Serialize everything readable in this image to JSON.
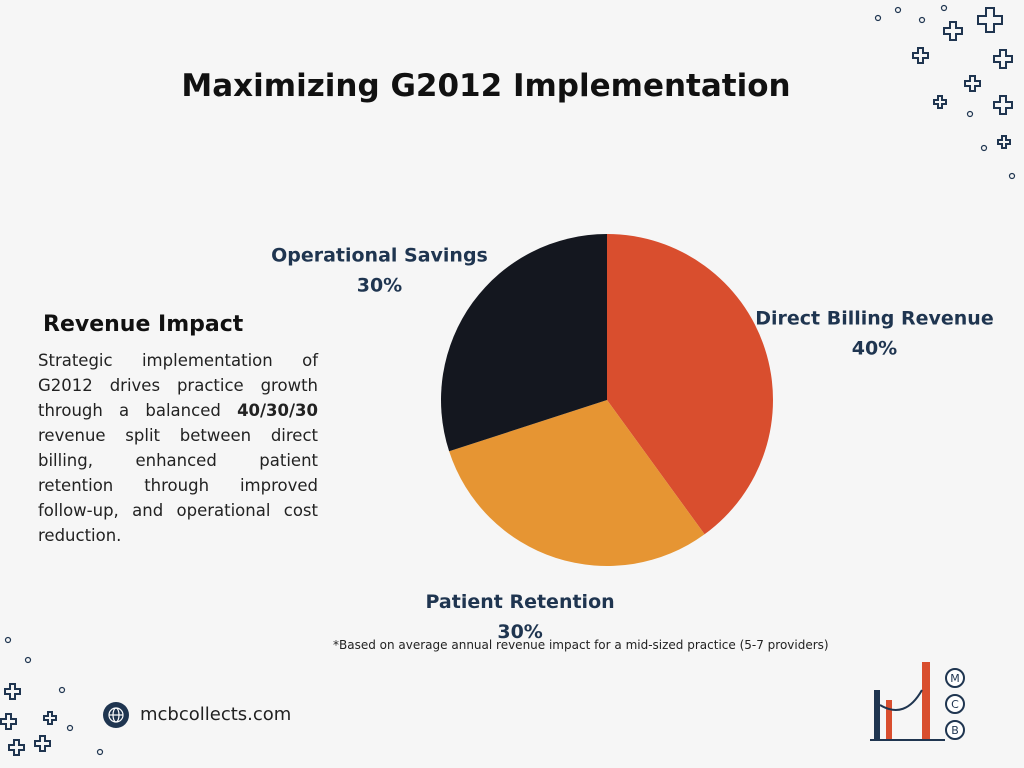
{
  "chart_data": {
    "type": "pie",
    "title": "Maximizing G2012 Implementation",
    "categories": [
      "Direct Billing Revenue",
      "Patient Retention",
      "Operational Savings"
    ],
    "values": [
      40,
      30,
      30
    ],
    "value_labels": [
      "40%",
      "30%",
      "30%"
    ],
    "colors": [
      "#d94e2e",
      "#e69533",
      "#14171f"
    ]
  },
  "sidebar": {
    "heading": "Revenue Impact",
    "text_before": "Strategic implementation of G2012 drives practice growth through a balanced",
    "bold": "40/30/30",
    "text_after": "revenue split between direct billing, enhanced patient retention through improved follow-up, and operational cost reduction."
  },
  "footnote": "*Based on average annual revenue impact for a mid-sized practice (5-7 providers)",
  "website": "mcbcollects.com",
  "logo": {
    "letters": [
      "M",
      "C",
      "B"
    ]
  }
}
